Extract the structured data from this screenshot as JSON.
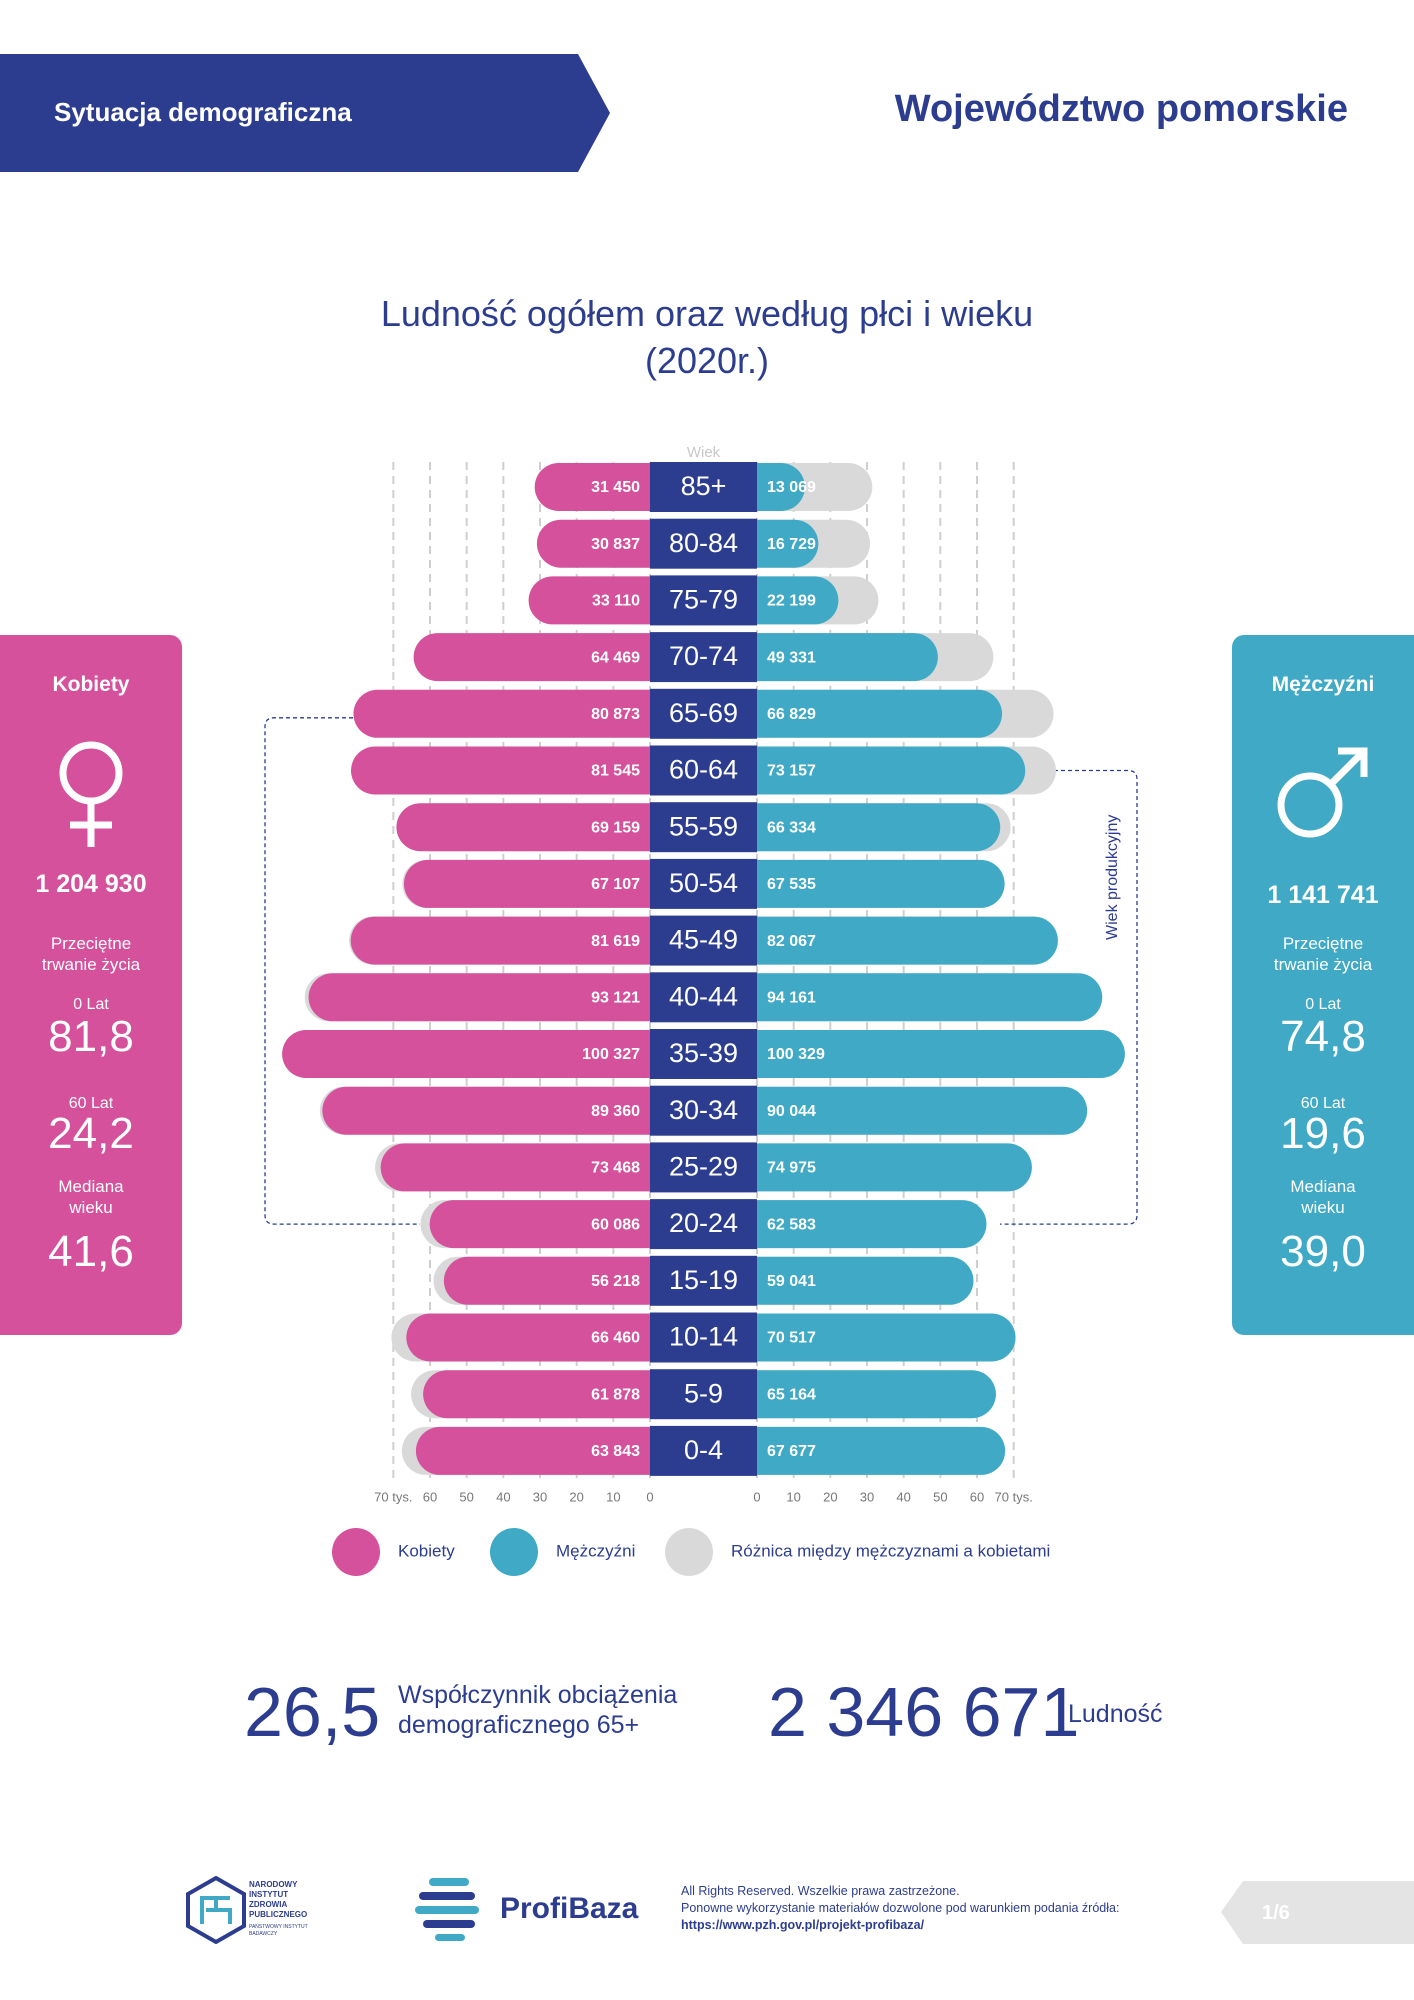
{
  "header": {
    "section": "Sytuacja demograficzna",
    "region": "Województwo pomorskie"
  },
  "chart_data": {
    "type": "pyramid",
    "title": "Ludność ogółem oraz według płci i wieku (2020r.)",
    "y_label": "Wiek",
    "annotation": "Wiek produkcyjny",
    "categories": [
      "85+",
      "80-84",
      "75-79",
      "70-74",
      "65-69",
      "60-64",
      "55-59",
      "50-54",
      "45-49",
      "40-44",
      "35-39",
      "30-34",
      "25-29",
      "20-24",
      "15-19",
      "10-14",
      "5-9",
      "0-4"
    ],
    "series": [
      {
        "name": "Kobiety",
        "color": "#d5519c",
        "values": [
          31.45,
          30.837,
          33.11,
          64.469,
          80.873,
          81.545,
          69.159,
          67.107,
          81.619,
          93.121,
          100.327,
          89.36,
          73.468,
          60.086,
          56.218,
          66.46,
          61.878,
          63.843
        ],
        "value_labels": [
          "31 450",
          "30 837",
          "33 110",
          "64 469",
          "80 873",
          "81 545",
          "69 159",
          "67 107",
          "81 619",
          "93 121",
          "100 327",
          "89 360",
          "73 468",
          "60 086",
          "56 218",
          "66 460",
          "61 878",
          "63 843"
        ]
      },
      {
        "name": "Mężczyźni",
        "color": "#3fa9c6",
        "values": [
          13.069,
          16.729,
          22.199,
          49.331,
          66.829,
          73.157,
          66.334,
          67.535,
          82.067,
          94.161,
          100.329,
          90.044,
          74.975,
          62.583,
          59.041,
          70.517,
          65.164,
          67.677
        ],
        "value_labels": [
          "13 069",
          "16 729",
          "22 199",
          "49 331",
          "66 829",
          "73 157",
          "66 334",
          "67 535",
          "82 067",
          "94 161",
          "100 329",
          "90 044",
          "74 975",
          "62 583",
          "59 041",
          "70 517",
          "65 164",
          "67 677"
        ]
      }
    ],
    "difference": {
      "name": "Różnica między mężczyznami a kobietami",
      "color": "#d9d9d9"
    },
    "center_color": "#2c3d8f",
    "xlim": [
      0,
      102
    ],
    "xticks": [
      0,
      10,
      20,
      30,
      40,
      50,
      60,
      {
        "value": 70,
        "label": "70 tys."
      }
    ],
    "grid": true
  },
  "panels": [
    {
      "title": "Kobiety",
      "total": "1 204 930",
      "life_label": "Przeciętne trwanie życia",
      "age0_label": "0 Lat",
      "age0": "81,8",
      "age60_label": "60 Lat",
      "age60": "24,2",
      "median_label": "Mediana wieku",
      "median": "41,6"
    },
    {
      "title": "Mężczyźni",
      "total": "1 141 741",
      "life_label": "Przeciętne trwanie życia",
      "age0_label": "0 Lat",
      "age0": "74,8",
      "age60_label": "60 Lat",
      "age60": "19,6",
      "median_label": "Mediana wieku",
      "median": "39,0"
    }
  ],
  "stats": [
    {
      "value": "26,5",
      "label": "Współczynnik obciążenia demograficznego 65+"
    },
    {
      "value": "2 346 671",
      "label": "Ludność"
    }
  ],
  "footer": {
    "institute": "NARODOWY INSTYTUT ZDROWIA PUBLICZNEGO",
    "institute_sub": "PAŃSTWOWY INSTYTUT BADAWCZY",
    "brand": "ProfiBaza",
    "rights": "All Rights Reserved. Wszelkie prawa zastrzeżone.",
    "reuse": "Ponowne wykorzystanie materiałów dozwolone pod warunkiem podania źródła:",
    "url": "https://www.pzh.gov.pl/projekt-profibaza/",
    "page": "1/6"
  }
}
